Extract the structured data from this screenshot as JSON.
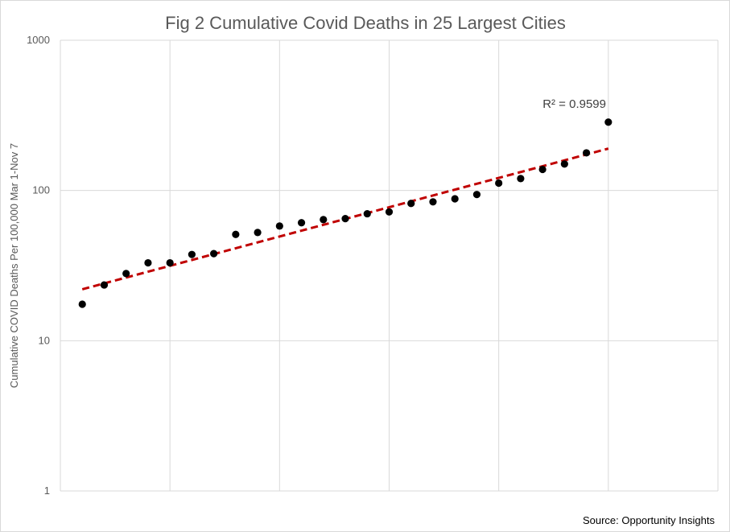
{
  "chart_data": {
    "type": "scatter",
    "title": "Fig 2 Cumulative Covid Deaths in 25 Largest Cities",
    "xlabel": "",
    "ylabel": "Cumulative COVID Deaths Per 100,000 Mar 1-Nov 7",
    "y_scale": "log",
    "ylim": [
      1,
      1000
    ],
    "y_ticks": [
      "1",
      "10",
      "100",
      "1000"
    ],
    "xlim": [
      0,
      30
    ],
    "x_tick_labels_shown": false,
    "grid": true,
    "x": [
      1,
      2,
      3,
      4,
      5,
      6,
      7,
      8,
      9,
      10,
      11,
      12,
      13,
      14,
      15,
      16,
      17,
      18,
      19,
      20,
      21,
      22,
      23,
      24,
      25
    ],
    "values": [
      17.5,
      23.5,
      28,
      33,
      33,
      37.5,
      38,
      51,
      52.5,
      58,
      61,
      64,
      65,
      70,
      72,
      82,
      84,
      88,
      94,
      112,
      120,
      138,
      150,
      178,
      285
    ],
    "marker_color": "#000000",
    "trendline": {
      "type": "exponential",
      "color": "#c00000",
      "style": "dashed",
      "x": [
        1,
        25
      ],
      "values": [
        22,
        190
      ],
      "r_squared_label": "R² = 0.9599"
    },
    "source": "Source: Opportunity Insights"
  }
}
